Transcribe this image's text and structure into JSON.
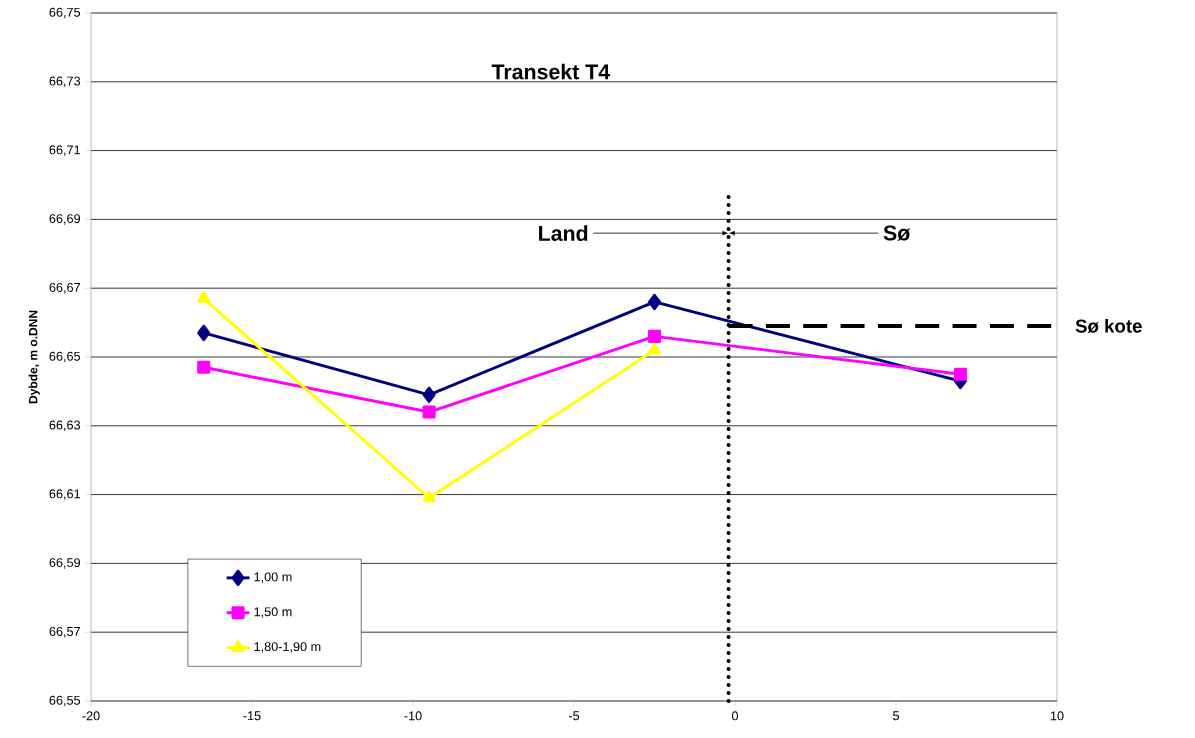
{
  "chart_data": {
    "type": "line",
    "title": "Transekt T4",
    "ylabel": "Dybde, m o.DNN",
    "x": [
      -16.5,
      -9.5,
      -2.5,
      7
    ],
    "series": [
      {
        "name": "1,00 m",
        "color": "#000080",
        "marker": "diamond",
        "values": [
          66.657,
          66.639,
          66.666,
          66.643
        ]
      },
      {
        "name": "1,50 m",
        "color": "#ff00ff",
        "marker": "square",
        "values": [
          66.647,
          66.634,
          66.656,
          66.645
        ]
      },
      {
        "name": "1,80-1,90 m",
        "color": "#ffff00",
        "marker": "triangle",
        "values": [
          66.667,
          66.609,
          66.652,
          null
        ]
      },
      {
        "name": "Sø kote",
        "color": "#000000",
        "marker": "none",
        "line_style": "dashed",
        "x": [
          -0.2,
          10
        ],
        "values": [
          66.659,
          66.659
        ]
      }
    ],
    "ref_lines": [
      {
        "axis": "x",
        "value": -0.2,
        "color": "#000000",
        "line_style": "dotted"
      }
    ],
    "annotations": [
      {
        "text": "Land",
        "x": -0.2,
        "y": 66.686
      },
      {
        "text": "Sø",
        "x": -0.2,
        "y": 66.686
      }
    ],
    "xlim": [
      -20,
      10
    ],
    "xticks": [
      -20,
      -15,
      -10,
      -5,
      0,
      5,
      10
    ],
    "ylim": [
      66.55,
      66.75
    ],
    "yticks": [
      {
        "value": 66.55,
        "label": "66,55"
      },
      {
        "value": 66.57,
        "label": "66,57"
      },
      {
        "value": 66.59,
        "label": "66,59"
      },
      {
        "value": 66.61,
        "label": "66,61"
      },
      {
        "value": 66.63,
        "label": "66,63"
      },
      {
        "value": 66.65,
        "label": "66,65"
      },
      {
        "value": 66.67,
        "label": "66,67"
      },
      {
        "value": 66.69,
        "label": "66,69"
      },
      {
        "value": 66.71,
        "label": "66,71"
      },
      {
        "value": 66.73,
        "label": "66,73"
      },
      {
        "value": 66.75,
        "label": "66,75"
      }
    ],
    "grid": "y",
    "legend": "bottom left"
  }
}
